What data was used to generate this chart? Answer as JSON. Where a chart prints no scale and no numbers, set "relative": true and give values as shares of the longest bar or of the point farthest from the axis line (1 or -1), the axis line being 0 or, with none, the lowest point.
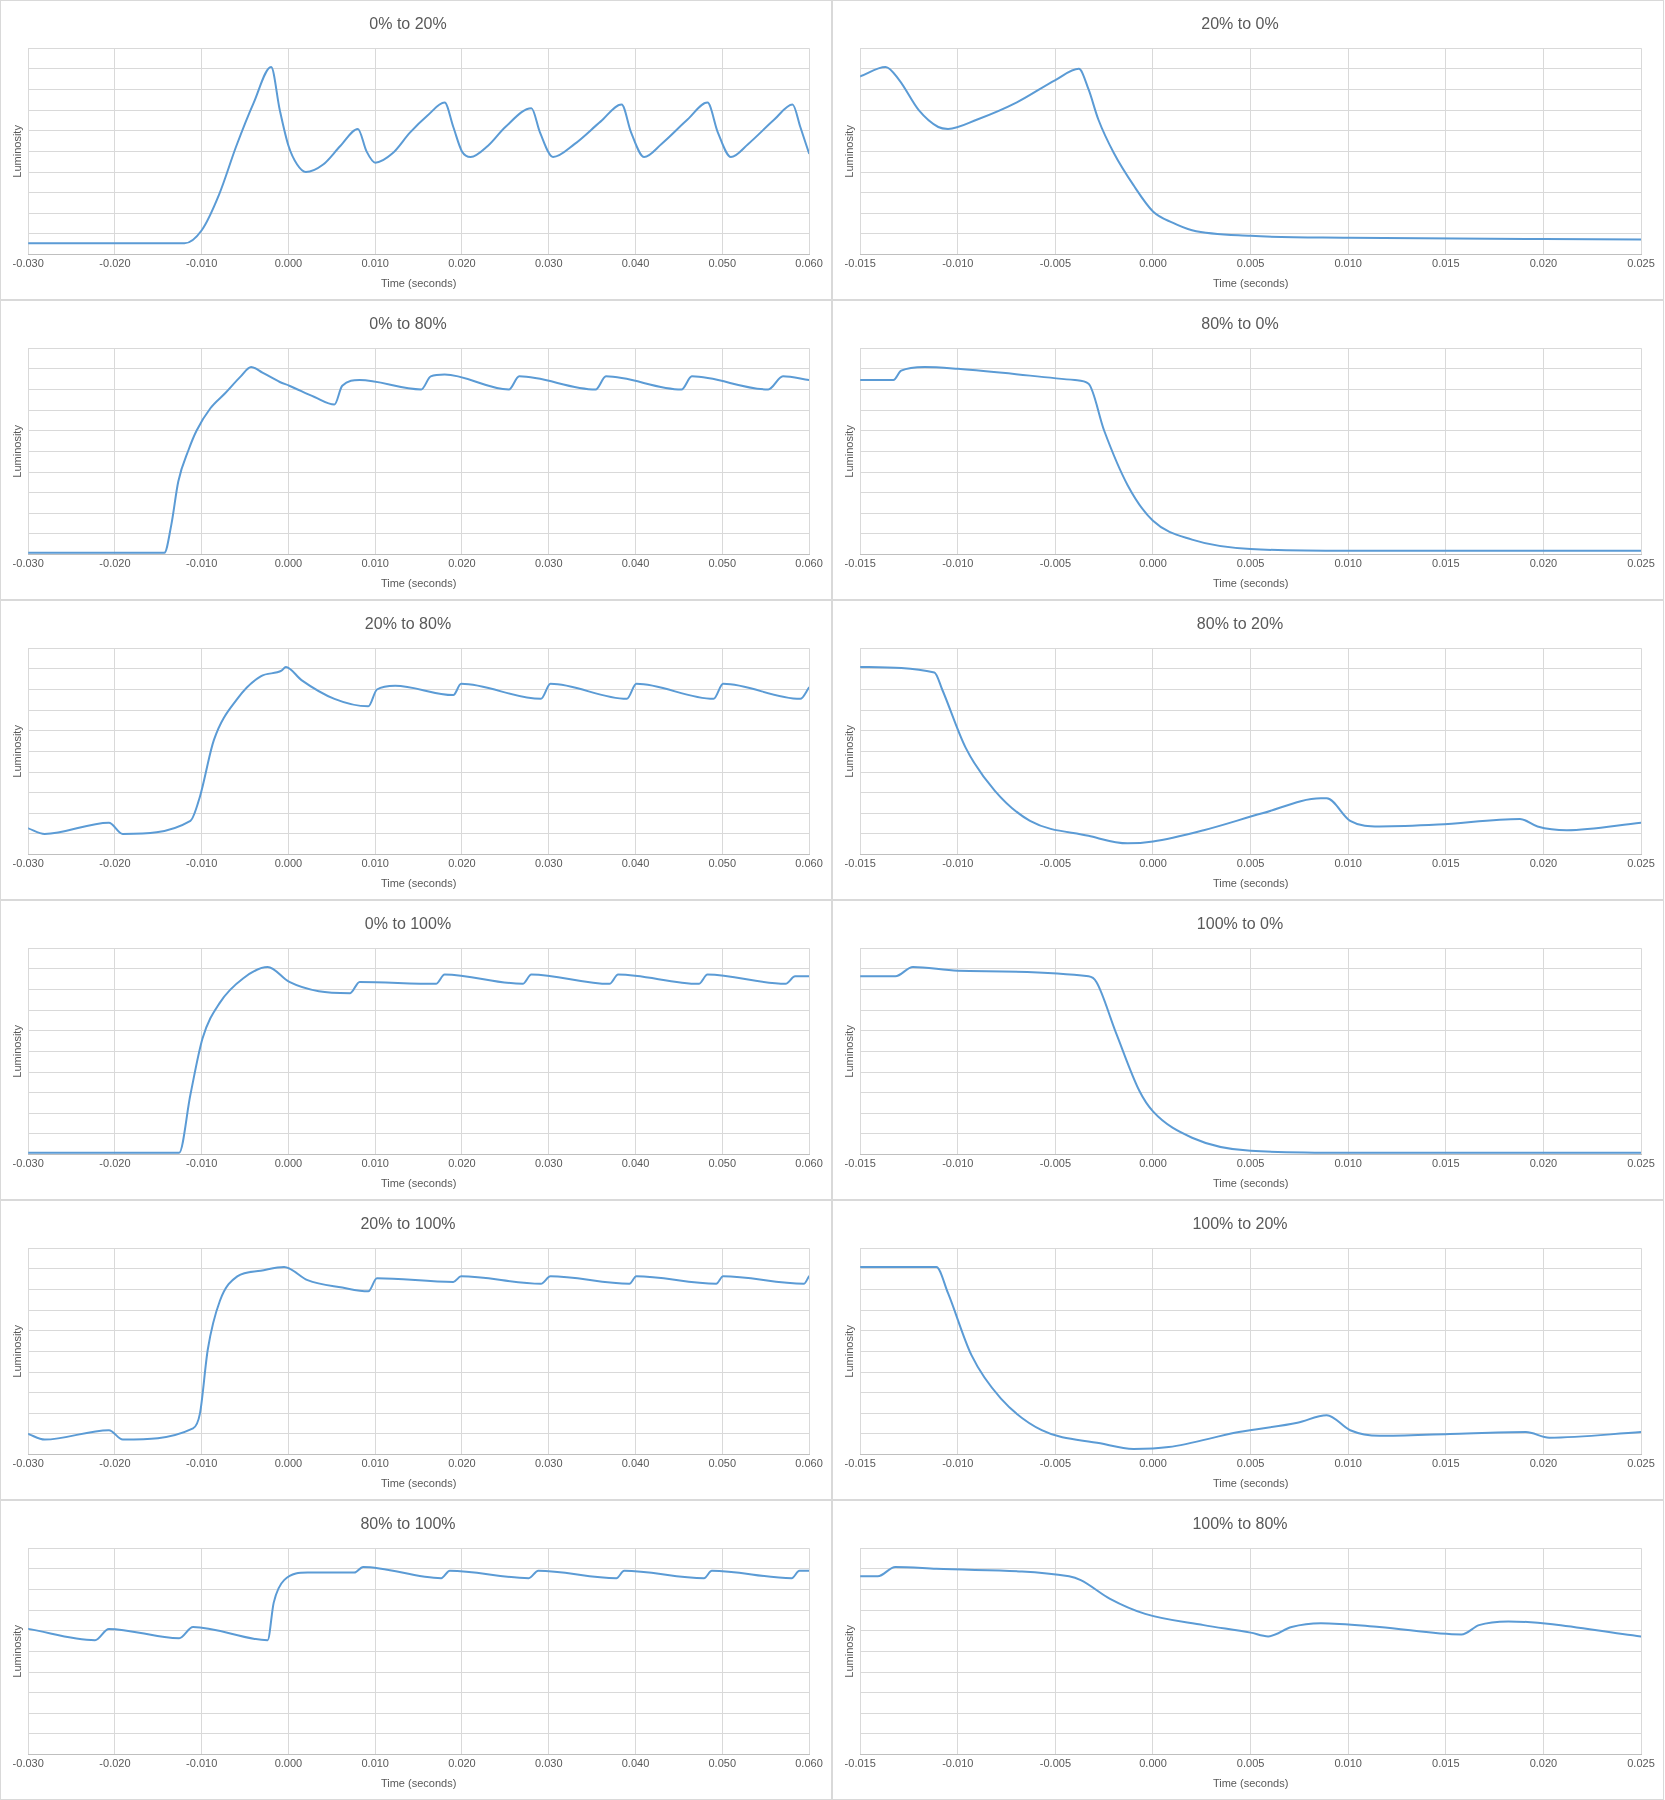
{
  "chart_data": [
    {
      "type": "line",
      "title": "0% to 20%",
      "xlabel": "Time (seconds)",
      "ylabel": "Luminosity",
      "relative": true,
      "grid": true,
      "color": "#5b9bd5",
      "xlim": [
        -0.03,
        0.06
      ],
      "xticks": [
        {
          "value": -0.03,
          "label": "-0.030"
        },
        {
          "value": -0.02,
          "label": "-0.020"
        },
        {
          "value": -0.01,
          "label": "-0.010"
        },
        {
          "value": 0,
          "label": "0.000"
        },
        {
          "value": 0.01,
          "label": "0.010"
        },
        {
          "value": 0.02,
          "label": "0.020"
        },
        {
          "value": 0.03,
          "label": "0.030"
        },
        {
          "value": 0.04,
          "label": "0.040"
        },
        {
          "value": 0.05,
          "label": "0.050"
        },
        {
          "value": 0.06,
          "label": "0.060"
        }
      ],
      "x": [
        -0.03,
        -0.02,
        -0.012,
        -0.01,
        -0.008,
        -0.006,
        -0.004,
        -0.002,
        -0.001,
        0,
        0.001,
        0.002,
        0.004,
        0.006,
        0.008,
        0.009,
        0.01,
        0.012,
        0.014,
        0.016,
        0.018,
        0.019,
        0.02,
        0.021,
        0.023,
        0.025,
        0.028,
        0.029,
        0.0305,
        0.033,
        0.036,
        0.0384,
        0.0395,
        0.041,
        0.043,
        0.046,
        0.0483,
        0.0495,
        0.051,
        0.053,
        0.056,
        0.0581,
        0.059,
        0.06
      ],
      "values": [
        0.06,
        0.06,
        0.06,
        0.13,
        0.32,
        0.58,
        0.81,
        1,
        0.77,
        0.58,
        0.48,
        0.44,
        0.48,
        0.58,
        0.67,
        0.55,
        0.49,
        0.54,
        0.65,
        0.74,
        0.81,
        0.68,
        0.55,
        0.52,
        0.58,
        0.68,
        0.78,
        0.65,
        0.52,
        0.59,
        0.71,
        0.8,
        0.65,
        0.52,
        0.59,
        0.72,
        0.81,
        0.65,
        0.52,
        0.59,
        0.72,
        0.8,
        0.68,
        0.54
      ]
    },
    {
      "type": "line",
      "title": "20% to 0%",
      "xlabel": "Time (seconds)",
      "ylabel": "Luminosity",
      "relative": true,
      "grid": true,
      "color": "#5b9bd5",
      "xlim": [
        -0.015,
        0.025
      ],
      "xticks": [
        {
          "value": -0.015,
          "label": "-0.015"
        },
        {
          "value": -0.01,
          "label": "-0.010"
        },
        {
          "value": -0.005,
          "label": "-0.005"
        },
        {
          "value": 0,
          "label": "0.000"
        },
        {
          "value": 0.005,
          "label": "0.005"
        },
        {
          "value": 0.01,
          "label": "0.010"
        },
        {
          "value": 0.015,
          "label": "0.015"
        },
        {
          "value": 0.02,
          "label": "0.020"
        },
        {
          "value": 0.025,
          "label": "0.025"
        }
      ],
      "x": [
        -0.015,
        -0.0137,
        -0.013,
        -0.012,
        -0.011,
        -0.0105,
        -0.009,
        -0.007,
        -0.005,
        -0.0038,
        -0.0033,
        -0.0028,
        -0.002,
        -0.001,
        0,
        0.001,
        0.002,
        0.005,
        0.01,
        0.025
      ],
      "values": [
        0.95,
        1,
        0.93,
        0.77,
        0.68,
        0.67,
        0.72,
        0.81,
        0.93,
        0.99,
        0.88,
        0.72,
        0.54,
        0.37,
        0.23,
        0.17,
        0.13,
        0.1,
        0.09,
        0.08
      ]
    },
    {
      "type": "line",
      "title": "0% to 80%",
      "xlabel": "Time (seconds)",
      "ylabel": "Luminosity",
      "relative": true,
      "grid": true,
      "color": "#5b9bd5",
      "xlim": [
        -0.03,
        0.06
      ],
      "xticks": [
        {
          "value": -0.03,
          "label": "-0.030"
        },
        {
          "value": -0.02,
          "label": "-0.020"
        },
        {
          "value": -0.01,
          "label": "-0.010"
        },
        {
          "value": 0,
          "label": "0.000"
        },
        {
          "value": 0.01,
          "label": "0.010"
        },
        {
          "value": 0.02,
          "label": "0.020"
        },
        {
          "value": 0.03,
          "label": "0.030"
        },
        {
          "value": 0.04,
          "label": "0.040"
        },
        {
          "value": 0.05,
          "label": "0.050"
        },
        {
          "value": 0.06,
          "label": "0.060"
        }
      ],
      "x": [
        -0.03,
        -0.0143,
        -0.0135,
        -0.0127,
        -0.0115,
        -0.0106,
        -0.009,
        -0.0073,
        -0.0055,
        -0.0043,
        -0.003,
        -0.001,
        0.0001,
        0.003,
        0.0053,
        0.0062,
        0.0082,
        0.0153,
        0.0164,
        0.018,
        0.0254,
        0.0266,
        0.0354,
        0.0366,
        0.0453,
        0.0465,
        0.0553,
        0.057,
        0.06
      ],
      "values": [
        0.01,
        0.01,
        0.16,
        0.39,
        0.56,
        0.66,
        0.78,
        0.86,
        0.95,
        1,
        0.97,
        0.92,
        0.9,
        0.84,
        0.8,
        0.9,
        0.93,
        0.88,
        0.95,
        0.96,
        0.88,
        0.95,
        0.88,
        0.95,
        0.88,
        0.95,
        0.88,
        0.95,
        0.93
      ]
    },
    {
      "type": "line",
      "title": "80% to 0%",
      "xlabel": "Time (seconds)",
      "ylabel": "Luminosity",
      "relative": true,
      "grid": true,
      "color": "#5b9bd5",
      "xlim": [
        -0.015,
        0.025
      ],
      "xticks": [
        {
          "value": -0.015,
          "label": "-0.015"
        },
        {
          "value": -0.01,
          "label": "-0.010"
        },
        {
          "value": -0.005,
          "label": "-0.005"
        },
        {
          "value": 0,
          "label": "0.000"
        },
        {
          "value": 0.005,
          "label": "0.005"
        },
        {
          "value": 0.01,
          "label": "0.010"
        },
        {
          "value": 0.015,
          "label": "0.015"
        },
        {
          "value": 0.02,
          "label": "0.020"
        },
        {
          "value": 0.025,
          "label": "0.025"
        }
      ],
      "x": [
        -0.015,
        -0.0133,
        -0.0129,
        -0.0117,
        -0.01,
        -0.004,
        -0.0033,
        -0.0025,
        -0.0013,
        0,
        0.002,
        0.005,
        0.01,
        0.025
      ],
      "values": [
        0.93,
        0.93,
        0.98,
        1,
        0.99,
        0.93,
        0.91,
        0.66,
        0.37,
        0.18,
        0.08,
        0.03,
        0.02,
        0.02
      ]
    },
    {
      "type": "line",
      "title": "20% to 80%",
      "xlabel": "Time (seconds)",
      "ylabel": "Luminosity",
      "relative": true,
      "grid": true,
      "color": "#5b9bd5",
      "xlim": [
        -0.03,
        0.06
      ],
      "xticks": [
        {
          "value": -0.03,
          "label": "-0.030"
        },
        {
          "value": -0.02,
          "label": "-0.020"
        },
        {
          "value": -0.01,
          "label": "-0.010"
        },
        {
          "value": 0,
          "label": "0.000"
        },
        {
          "value": 0.01,
          "label": "0.010"
        },
        {
          "value": 0.02,
          "label": "0.020"
        },
        {
          "value": 0.03,
          "label": "0.030"
        },
        {
          "value": 0.04,
          "label": "0.040"
        },
        {
          "value": 0.05,
          "label": "0.050"
        },
        {
          "value": 0.06,
          "label": "0.060"
        }
      ],
      "x": [
        -0.03,
        -0.0281,
        -0.0207,
        -0.0191,
        -0.0113,
        -0.0102,
        -0.0086,
        -0.0059,
        -0.0032,
        -0.0008,
        -0.0003,
        0.0015,
        0.0053,
        0.0092,
        0.0102,
        0.0123,
        0.019,
        0.0199,
        0.0291,
        0.0302,
        0.039,
        0.0401,
        0.049,
        0.0501,
        0.059,
        0.06
      ],
      "values": [
        0.14,
        0.11,
        0.17,
        0.11,
        0.18,
        0.31,
        0.61,
        0.83,
        0.95,
        0.98,
        1,
        0.93,
        0.83,
        0.79,
        0.88,
        0.9,
        0.85,
        0.91,
        0.83,
        0.91,
        0.83,
        0.91,
        0.83,
        0.91,
        0.83,
        0.89
      ]
    },
    {
      "type": "line",
      "title": "80% to 20%",
      "xlabel": "Time (seconds)",
      "ylabel": "Luminosity",
      "relative": true,
      "grid": true,
      "color": "#5b9bd5",
      "xlim": [
        -0.015,
        0.025
      ],
      "xticks": [
        {
          "value": -0.015,
          "label": "-0.015"
        },
        {
          "value": -0.01,
          "label": "-0.010"
        },
        {
          "value": -0.005,
          "label": "-0.005"
        },
        {
          "value": 0,
          "label": "0.000"
        },
        {
          "value": 0.005,
          "label": "0.005"
        },
        {
          "value": 0.01,
          "label": "0.010"
        },
        {
          "value": 0.015,
          "label": "0.015"
        },
        {
          "value": 0.02,
          "label": "0.020"
        },
        {
          "value": 0.025,
          "label": "0.025"
        }
      ],
      "x": [
        -0.015,
        -0.0112,
        -0.0108,
        -0.0096,
        -0.0081,
        -0.0063,
        -0.0033,
        -0.0013,
        0,
        0.0026,
        0.0056,
        0.0086,
        0.0089,
        0.0101,
        0.0116,
        0.0146,
        0.0188,
        0.0197,
        0.0212,
        0.025
      ],
      "values": [
        1,
        0.97,
        0.88,
        0.57,
        0.34,
        0.18,
        0.1,
        0.06,
        0.07,
        0.13,
        0.22,
        0.3,
        0.3,
        0.18,
        0.15,
        0.16,
        0.19,
        0.15,
        0.13,
        0.17
      ]
    },
    {
      "type": "line",
      "title": "0% to 100%",
      "xlabel": "Time (seconds)",
      "ylabel": "Luminosity",
      "relative": true,
      "grid": true,
      "color": "#5b9bd5",
      "xlim": [
        -0.03,
        0.06
      ],
      "xticks": [
        {
          "value": -0.03,
          "label": "-0.030"
        },
        {
          "value": -0.02,
          "label": "-0.020"
        },
        {
          "value": -0.01,
          "label": "-0.010"
        },
        {
          "value": 0,
          "label": "0.000"
        },
        {
          "value": 0.01,
          "label": "0.010"
        },
        {
          "value": 0.02,
          "label": "0.020"
        },
        {
          "value": 0.03,
          "label": "0.030"
        },
        {
          "value": 0.04,
          "label": "0.040"
        },
        {
          "value": 0.05,
          "label": "0.050"
        },
        {
          "value": 0.06,
          "label": "0.060"
        }
      ],
      "x": [
        -0.03,
        -0.0126,
        -0.0113,
        -0.0099,
        -0.0079,
        -0.0052,
        -0.0024,
        0.0001,
        0.0035,
        0.0071,
        0.0082,
        0.017,
        0.018,
        0.027,
        0.028,
        0.037,
        0.038,
        0.0473,
        0.0483,
        0.0573,
        0.0584,
        0.06
      ],
      "values": [
        0.01,
        0.01,
        0.32,
        0.62,
        0.81,
        0.94,
        1,
        0.92,
        0.87,
        0.86,
        0.92,
        0.91,
        0.96,
        0.91,
        0.96,
        0.91,
        0.96,
        0.91,
        0.96,
        0.91,
        0.95,
        0.95
      ]
    },
    {
      "type": "line",
      "title": "100% to 0%",
      "xlabel": "Time (seconds)",
      "ylabel": "Luminosity",
      "relative": true,
      "grid": true,
      "color": "#5b9bd5",
      "xlim": [
        -0.015,
        0.025
      ],
      "xticks": [
        {
          "value": -0.015,
          "label": "-0.015"
        },
        {
          "value": -0.01,
          "label": "-0.010"
        },
        {
          "value": -0.005,
          "label": "-0.005"
        },
        {
          "value": 0,
          "label": "0.000"
        },
        {
          "value": 0.005,
          "label": "0.005"
        },
        {
          "value": 0.01,
          "label": "0.010"
        },
        {
          "value": 0.015,
          "label": "0.015"
        },
        {
          "value": 0.02,
          "label": "0.020"
        },
        {
          "value": 0.025,
          "label": "0.025"
        }
      ],
      "x": [
        -0.015,
        -0.0132,
        -0.0123,
        -0.01,
        -0.0033,
        -0.0029,
        -0.0019,
        -0.0007,
        0,
        0.002,
        0.005,
        0.01,
        0.025
      ],
      "values": [
        0.95,
        0.95,
        1,
        0.98,
        0.95,
        0.92,
        0.65,
        0.34,
        0.23,
        0.09,
        0.02,
        0.01,
        0.01
      ]
    },
    {
      "type": "line",
      "title": "20% to 100%",
      "xlabel": "Time (seconds)",
      "ylabel": "Luminosity",
      "relative": true,
      "grid": true,
      "color": "#5b9bd5",
      "xlim": [
        -0.03,
        0.06
      ],
      "xticks": [
        {
          "value": -0.03,
          "label": "-0.030"
        },
        {
          "value": -0.02,
          "label": "-0.020"
        },
        {
          "value": -0.01,
          "label": "-0.010"
        },
        {
          "value": 0,
          "label": "0.000"
        },
        {
          "value": 0.01,
          "label": "0.010"
        },
        {
          "value": 0.02,
          "label": "0.020"
        },
        {
          "value": 0.03,
          "label": "0.030"
        },
        {
          "value": 0.04,
          "label": "0.040"
        },
        {
          "value": 0.05,
          "label": "0.050"
        },
        {
          "value": 0.06,
          "label": "0.060"
        }
      ],
      "x": [
        -0.03,
        -0.0281,
        -0.0207,
        -0.0191,
        -0.011,
        -0.0102,
        -0.0093,
        -0.0079,
        -0.0059,
        -0.0032,
        -0.0005,
        0.0022,
        0.0062,
        0.0092,
        0.0102,
        0.019,
        0.0199,
        0.0291,
        0.0302,
        0.0393,
        0.0401,
        0.0493,
        0.0501,
        0.0594,
        0.06
      ],
      "values": [
        0.11,
        0.08,
        0.13,
        0.08,
        0.14,
        0.22,
        0.56,
        0.82,
        0.95,
        0.98,
        1,
        0.93,
        0.89,
        0.87,
        0.94,
        0.92,
        0.95,
        0.91,
        0.95,
        0.91,
        0.95,
        0.91,
        0.95,
        0.91,
        0.95
      ]
    },
    {
      "type": "line",
      "title": "100% to 20%",
      "xlabel": "Time (seconds)",
      "ylabel": "Luminosity",
      "relative": true,
      "grid": true,
      "color": "#5b9bd5",
      "xlim": [
        -0.015,
        0.025
      ],
      "xticks": [
        {
          "value": -0.015,
          "label": "-0.015"
        },
        {
          "value": -0.01,
          "label": "-0.010"
        },
        {
          "value": -0.005,
          "label": "-0.005"
        },
        {
          "value": 0,
          "label": "0.000"
        },
        {
          "value": 0.005,
          "label": "0.005"
        },
        {
          "value": 0.01,
          "label": "0.010"
        },
        {
          "value": 0.015,
          "label": "0.015"
        },
        {
          "value": 0.02,
          "label": "0.020"
        },
        {
          "value": 0.025,
          "label": "0.025"
        }
      ],
      "x": [
        -0.015,
        -0.0111,
        -0.0105,
        -0.0093,
        -0.0078,
        -0.0057,
        -0.0027,
        -0.001,
        0.0008,
        0.0044,
        0.0074,
        0.0089,
        0.0101,
        0.0116,
        0.0152,
        0.0191,
        0.0203,
        0.025
      ],
      "values": [
        1,
        1,
        0.86,
        0.53,
        0.3,
        0.13,
        0.06,
        0.03,
        0.04,
        0.12,
        0.17,
        0.21,
        0.13,
        0.1,
        0.11,
        0.12,
        0.09,
        0.12
      ]
    },
    {
      "type": "line",
      "title": "80% to 100%",
      "xlabel": "Time (seconds)",
      "ylabel": "Luminosity",
      "relative": true,
      "grid": true,
      "color": "#5b9bd5",
      "xlim": [
        -0.03,
        0.06
      ],
      "xticks": [
        {
          "value": -0.03,
          "label": "-0.030"
        },
        {
          "value": -0.02,
          "label": "-0.020"
        },
        {
          "value": -0.01,
          "label": "-0.010"
        },
        {
          "value": 0,
          "label": "0.000"
        },
        {
          "value": 0.01,
          "label": "0.010"
        },
        {
          "value": 0.02,
          "label": "0.020"
        },
        {
          "value": 0.03,
          "label": "0.030"
        },
        {
          "value": 0.04,
          "label": "0.040"
        },
        {
          "value": 0.05,
          "label": "0.050"
        },
        {
          "value": 0.06,
          "label": "0.060"
        }
      ],
      "x": [
        -0.03,
        -0.0223,
        -0.0207,
        -0.0126,
        -0.011,
        -0.0024,
        -0.0017,
        -0.0005,
        0.0022,
        0.0076,
        0.0086,
        0.0176,
        0.0186,
        0.0277,
        0.0288,
        0.0378,
        0.0387,
        0.0479,
        0.0488,
        0.058,
        0.0589,
        0.06
      ],
      "values": [
        0.67,
        0.61,
        0.67,
        0.62,
        0.68,
        0.61,
        0.81,
        0.93,
        0.97,
        0.97,
        1,
        0.94,
        0.98,
        0.94,
        0.98,
        0.94,
        0.98,
        0.94,
        0.98,
        0.94,
        0.98,
        0.98
      ]
    },
    {
      "type": "line",
      "title": "100% to 80%",
      "xlabel": "Time (seconds)",
      "ylabel": "Luminosity",
      "relative": true,
      "grid": true,
      "color": "#5b9bd5",
      "xlim": [
        -0.015,
        0.025
      ],
      "xticks": [
        {
          "value": -0.015,
          "label": "-0.015"
        },
        {
          "value": -0.01,
          "label": "-0.010"
        },
        {
          "value": -0.005,
          "label": "-0.005"
        },
        {
          "value": 0,
          "label": "0.000"
        },
        {
          "value": 0.005,
          "label": "0.005"
        },
        {
          "value": 0.01,
          "label": "0.010"
        },
        {
          "value": 0.015,
          "label": "0.015"
        },
        {
          "value": 0.02,
          "label": "0.020"
        },
        {
          "value": 0.025,
          "label": "0.025"
        }
      ],
      "x": [
        -0.015,
        -0.0141,
        -0.0132,
        -0.0111,
        -0.0043,
        -0.0037,
        -0.0022,
        -0.0004,
        0.0026,
        0.005,
        0.0059,
        0.0071,
        0.0086,
        0.0116,
        0.0158,
        0.0167,
        0.0182,
        0.025
      ],
      "values": [
        0.95,
        0.95,
        1,
        0.99,
        0.95,
        0.93,
        0.83,
        0.75,
        0.69,
        0.65,
        0.63,
        0.68,
        0.7,
        0.68,
        0.64,
        0.69,
        0.71,
        0.63
      ]
    }
  ]
}
